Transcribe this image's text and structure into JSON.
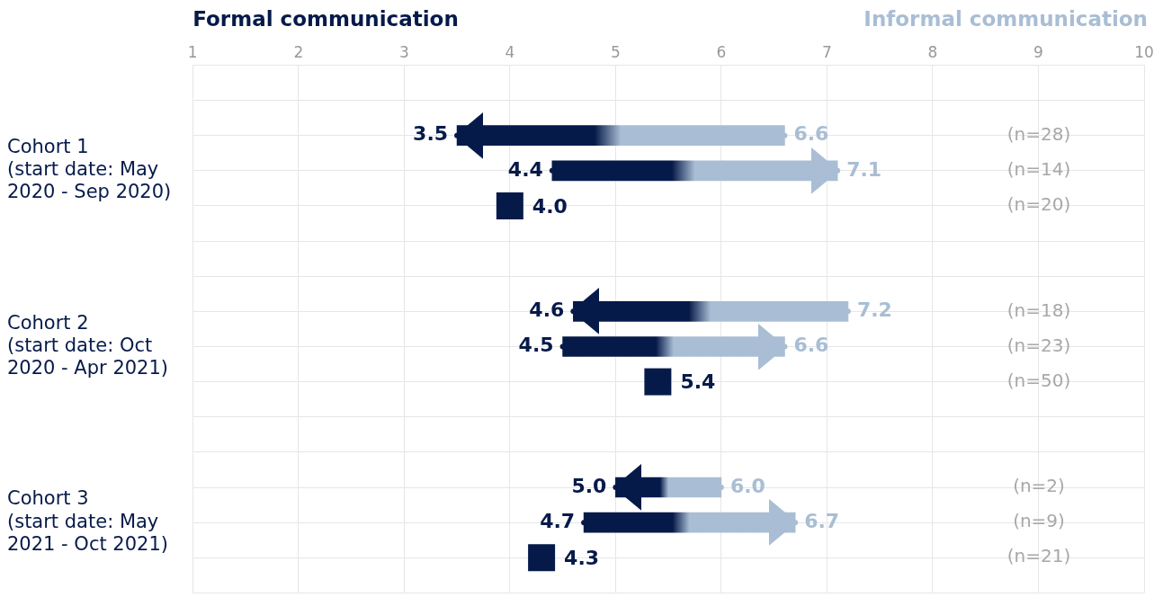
{
  "chart_data": {
    "type": "bar",
    "orientation": "horizontal",
    "categories": [
      null,
      null,
      null,
      "Cohort 1\n(start date: May\n2020 - Sep 2020)",
      null,
      null,
      null,
      null,
      "Cohort 2\n(start date: Oct\n2020 - Apr 2021)",
      null,
      null,
      null,
      null,
      "Cohort 3\n(start date: May\n2021 - Oct 2021)",
      null,
      null
    ],
    "annotations": [
      "(n=28)",
      "(n=14)",
      "(n=20)",
      "(n=18)",
      "(n=23)",
      "(n=50)",
      "(n=2)",
      "(n=9)",
      "(n=21)"
    ],
    "xlim": [
      1,
      10
    ],
    "xticks": [
      1,
      2,
      3,
      4,
      5,
      6,
      7,
      8,
      9,
      10
    ],
    "grid": true,
    "legend": "top",
    "series": [
      {
        "color": "#061a4a",
        "base": [
          null,
          null,
          6.6,
          4.4,
          null,
          null,
          null,
          7.2,
          4.5,
          null,
          null,
          null,
          6.0,
          4.7,
          null,
          null
        ],
        "values": [
          null,
          null,
          -3.1,
          2.7,
          null,
          null,
          null,
          -2.6,
          2.1,
          null,
          null,
          null,
          -1.0,
          2.0,
          null,
          null
        ]
      },
      {
        "type": "scatter",
        "name": "Formal communication",
        "color": "#061a4a",
        "marker": "circle",
        "values": [
          null,
          null,
          3.5,
          4.4,
          null,
          null,
          null,
          4.6,
          4.5,
          null,
          null,
          null,
          5.0,
          4.7,
          null,
          null
        ],
        "value_labels": [
          null,
          null,
          "3.5",
          "4.4",
          null,
          null,
          null,
          "4.6",
          "4.5",
          null,
          null,
          null,
          "5.0",
          "4.7",
          null,
          null
        ]
      },
      {
        "type": "scatter",
        "name": "Informal communication",
        "color": "#a9bed4",
        "marker": "circle",
        "values": [
          null,
          null,
          6.6,
          7.1,
          null,
          null,
          null,
          7.2,
          6.6,
          null,
          null,
          null,
          6.0,
          6.7,
          null,
          null
        ],
        "value_labels": [
          null,
          null,
          "6.6",
          "7.1",
          null,
          null,
          null,
          "7.2",
          "6.6",
          null,
          null,
          null,
          "6.0",
          "6.7",
          null,
          null
        ]
      },
      {
        "type": "scatter",
        "color": "#061a4a",
        "marker": "square",
        "values": [
          null,
          null,
          null,
          null,
          4.0,
          null,
          null,
          null,
          null,
          5.4,
          null,
          null,
          null,
          null,
          4.3,
          null
        ],
        "value_labels": [
          null,
          null,
          null,
          null,
          "4.0",
          null,
          null,
          null,
          null,
          "5.4",
          null,
          null,
          null,
          null,
          "4.3",
          null
        ]
      }
    ]
  }
}
